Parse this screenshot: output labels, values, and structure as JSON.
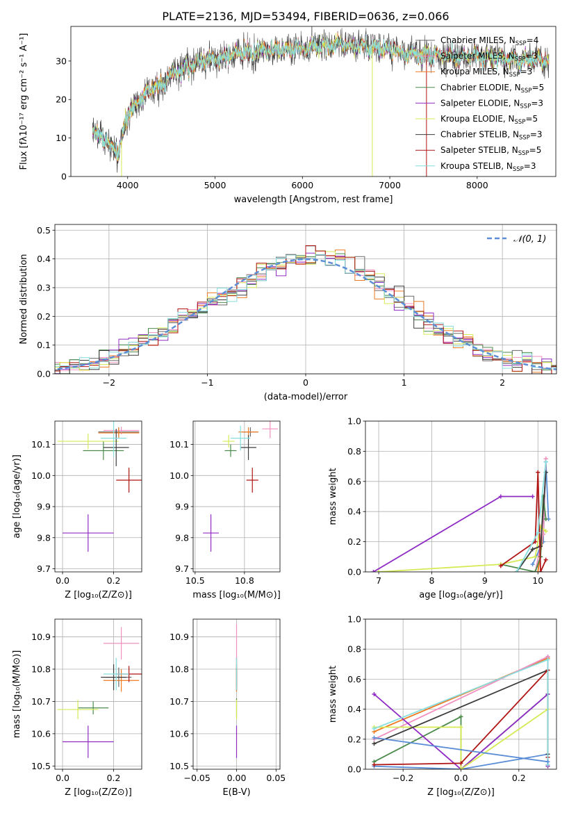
{
  "figure": {
    "title": "PLATE=2136, MJD=53494, FIBERID=0636, z=0.066"
  },
  "series_colors": [
    "#6a6a6a",
    "#f08fc0",
    "#ee7a22",
    "#4c8a4c",
    "#8f2bc4",
    "#d6ea55",
    "#3c3c3c",
    "#b01414",
    "#86dede"
  ],
  "legend_colors": {
    "normal": "#5b8ed6"
  },
  "chart_data": [
    {
      "id": "spectrum",
      "type": "line",
      "xlabel": "wavelength [Angstrom, rest frame]",
      "ylabel": "Flux [fλ10⁻¹⁷ erg cm⁻² s⁻¹ A⁻¹]",
      "xlim": [
        3350,
        8900
      ],
      "ylim": [
        0,
        39
      ],
      "xticks": [
        4000,
        5000,
        6000,
        7000,
        8000
      ],
      "yticks": [
        0,
        10,
        20,
        30
      ],
      "x_range_data": [
        3600,
        8820
      ],
      "continuum_shape": {
        "x": [
          3600,
          3700,
          3800,
          3900,
          3950,
          4000,
          4100,
          4200,
          4300,
          4400,
          4500,
          4600,
          4800,
          5000,
          5200,
          5500,
          5800,
          6000,
          6200,
          6500,
          6800,
          7000,
          7200,
          7500,
          7800,
          8000,
          8400,
          8820
        ],
        "y": [
          11,
          10.5,
          8,
          6,
          12,
          16,
          19,
          22,
          23,
          24,
          26,
          27.5,
          29.5,
          30.5,
          31.5,
          32.5,
          33,
          33.5,
          34,
          34.5,
          33.5,
          33,
          32,
          31.5,
          31,
          31,
          30.5,
          30
        ]
      },
      "legend_position": "right",
      "legend": [
        {
          "label": "Chabrier MILES, N",
          "sub": "SSP",
          "suffix": "=4"
        },
        {
          "label": "Salpeter MILES, N",
          "sub": "SSP",
          "suffix": "=3"
        },
        {
          "label": "Kroupa MILES, N",
          "sub": "SSP",
          "suffix": "=3"
        },
        {
          "label": "Chabrier ELODIE, N",
          "sub": "SSP",
          "suffix": "=5"
        },
        {
          "label": "Salpeter ELODIE, N",
          "sub": "SSP",
          "suffix": "=3"
        },
        {
          "label": "Kroupa ELODIE, N",
          "sub": "SSP",
          "suffix": "=5"
        },
        {
          "label": "Chabrier STELIB, N",
          "sub": "SSP",
          "suffix": "=3"
        },
        {
          "label": "Salpeter STELIB, N",
          "sub": "SSP",
          "suffix": "=5"
        },
        {
          "label": "Kroupa STELIB, N",
          "sub": "SSP",
          "suffix": "=3"
        }
      ]
    },
    {
      "id": "residuals",
      "type": "histogram",
      "xlabel": "(data-model)/error",
      "ylabel": "Normed distribution",
      "xlim": [
        -2.55,
        2.55
      ],
      "ylim": [
        0,
        0.52
      ],
      "xticks": [
        -2,
        -1,
        0,
        1,
        2
      ],
      "yticks": [
        0.0,
        0.1,
        0.2,
        0.3,
        0.4,
        0.5
      ],
      "bin_width": 0.1,
      "grid": true,
      "legend_position": "top-right",
      "legend": [
        {
          "label": "𝒩(0, 1)"
        }
      ]
    },
    {
      "id": "age-vs-z",
      "type": "errorbar",
      "xlabel": "Z [log₁₀(Z/Z⊙)]",
      "ylabel": "age  [log₁₀(age/yr)]",
      "xlim": [
        -0.03,
        0.31
      ],
      "ylim": [
        9.69,
        10.175
      ],
      "xticks": [
        0.0,
        0.2
      ],
      "yticks": [
        9.7,
        9.8,
        9.9,
        10.0,
        10.1
      ],
      "grid": true,
      "points": [
        {
          "x": 0.22,
          "xerr": 0.08,
          "y": 10.14,
          "yerr": 0.015
        },
        {
          "x": 0.23,
          "xerr": 0.07,
          "y": 10.145,
          "yerr": 0.012
        },
        {
          "x": 0.22,
          "xerr": 0.08,
          "y": 10.137,
          "yerr": 0.018
        },
        {
          "x": 0.16,
          "xerr": 0.08,
          "y": 10.08,
          "yerr": 0.03
        },
        {
          "x": 0.1,
          "xerr": 0.1,
          "y": 9.815,
          "yerr": 0.06
        },
        {
          "x": 0.1,
          "xerr": 0.12,
          "y": 10.11,
          "yerr": 0.025
        },
        {
          "x": 0.21,
          "xerr": 0.05,
          "y": 10.09,
          "yerr": 0.06
        },
        {
          "x": 0.26,
          "xerr": 0.05,
          "y": 9.985,
          "yerr": 0.04
        },
        {
          "x": 0.2,
          "xerr": 0.05,
          "y": 10.12,
          "yerr": 0.06
        }
      ]
    },
    {
      "id": "age-vs-mass",
      "type": "errorbar",
      "xlabel": "mass [log₁₀(M/M⊙)]",
      "ylabel": "",
      "xlim": [
        10.49,
        10.93
      ],
      "ylim": [
        9.69,
        10.175
      ],
      "xticks": [
        10.5,
        10.75
      ],
      "yticks": [
        9.7,
        9.8,
        9.9,
        10.0,
        10.1
      ],
      "grid": true,
      "points": [
        {
          "x": 10.78,
          "xerr": 0.04,
          "y": 10.14,
          "yerr": 0.015
        },
        {
          "x": 10.88,
          "xerr": 0.04,
          "y": 10.15,
          "yerr": 0.03
        },
        {
          "x": 10.77,
          "xerr": 0.05,
          "y": 10.14,
          "yerr": 0.015
        },
        {
          "x": 10.68,
          "xerr": 0.03,
          "y": 10.08,
          "yerr": 0.02
        },
        {
          "x": 10.58,
          "xerr": 0.04,
          "y": 9.815,
          "yerr": 0.06
        },
        {
          "x": 10.67,
          "xerr": 0.03,
          "y": 10.11,
          "yerr": 0.02
        },
        {
          "x": 10.77,
          "xerr": 0.04,
          "y": 10.09,
          "yerr": 0.04
        },
        {
          "x": 10.79,
          "xerr": 0.03,
          "y": 9.985,
          "yerr": 0.04
        },
        {
          "x": 10.73,
          "xerr": 0.05,
          "y": 10.12,
          "yerr": 0.04
        }
      ]
    },
    {
      "id": "weight-vs-age",
      "type": "line",
      "xlabel": "age  [log₁₀(age/yr)]",
      "ylabel": "mass weight",
      "xlim": [
        6.75,
        10.35
      ],
      "ylim": [
        0,
        1.0
      ],
      "xticks": [
        7,
        8,
        9,
        10
      ],
      "yticks": [
        0.0,
        0.2,
        0.4,
        0.6,
        0.8,
        1.0
      ],
      "grid": true,
      "series": [
        {
          "x": [
            9.9,
            10.1,
            10.15,
            10.2
          ],
          "y": [
            0.05,
            0.2,
            0.73,
            0.35
          ]
        },
        {
          "x": [
            10.0,
            10.1,
            10.15
          ],
          "y": [
            0.0,
            0.25,
            0.75
          ]
        },
        {
          "x": [
            9.95,
            10.1,
            10.15
          ],
          "y": [
            0.0,
            0.25,
            0.75
          ]
        },
        {
          "x": [
            9.3,
            9.95,
            10.05,
            10.1,
            10.15
          ],
          "y": [
            0.05,
            0.0,
            0.1,
            0.5,
            0.35
          ]
        },
        {
          "x": [
            6.9,
            9.3,
            9.9
          ],
          "y": [
            0.0,
            0.5,
            0.5
          ]
        },
        {
          "x": [
            7.0,
            9.3,
            9.95,
            10.05,
            10.15
          ],
          "y": [
            0.0,
            0.05,
            0.1,
            0.3,
            0.27
          ]
        },
        {
          "x": [
            9.6,
            9.9,
            10.05,
            10.15
          ],
          "y": [
            0.0,
            0.15,
            0.17,
            0.66
          ]
        },
        {
          "x": [
            9.3,
            9.95,
            10.0,
            10.05,
            10.15
          ],
          "y": [
            0.04,
            0.2,
            0.66,
            0.0,
            0.08
          ]
        },
        {
          "x": [
            9.6,
            10.0,
            10.15
          ],
          "y": [
            0.0,
            0.26,
            0.73
          ]
        }
      ]
    },
    {
      "id": "mass-vs-z",
      "type": "errorbar",
      "xlabel": "Z [log₁₀(Z/Z⊙)]",
      "ylabel": "mass [log₁₀(M/M⊙)]",
      "xlim": [
        -0.03,
        0.31
      ],
      "ylim": [
        10.49,
        10.955
      ],
      "xticks": [
        0.0,
        0.2
      ],
      "yticks": [
        10.5,
        10.6,
        10.7,
        10.8,
        10.9
      ],
      "grid": true,
      "points": [
        {
          "x": 0.22,
          "xerr": 0.05,
          "y": 10.775,
          "yerr": 0.03
        },
        {
          "x": 0.23,
          "xerr": 0.07,
          "y": 10.88,
          "yerr": 0.05
        },
        {
          "x": 0.23,
          "xerr": 0.07,
          "y": 10.765,
          "yerr": 0.035
        },
        {
          "x": 0.12,
          "xerr": 0.06,
          "y": 10.68,
          "yerr": 0.02
        },
        {
          "x": 0.1,
          "xerr": 0.1,
          "y": 10.575,
          "yerr": 0.05
        },
        {
          "x": 0.06,
          "xerr": 0.08,
          "y": 10.675,
          "yerr": 0.03
        },
        {
          "x": 0.2,
          "xerr": 0.05,
          "y": 10.775,
          "yerr": 0.04
        },
        {
          "x": 0.26,
          "xerr": 0.05,
          "y": 10.785,
          "yerr": 0.025
        },
        {
          "x": 0.21,
          "xerr": 0.05,
          "y": 10.785,
          "yerr": 0.05
        }
      ]
    },
    {
      "id": "mass-vs-ebv",
      "type": "errorbar",
      "xlabel": "E(B-V)",
      "ylabel": "",
      "xlim": [
        -0.055,
        0.055
      ],
      "ylim": [
        10.49,
        10.955
      ],
      "xticks": [
        -0.05,
        0.0,
        0.05
      ],
      "yticks": [
        10.5,
        10.6,
        10.7,
        10.8,
        10.9
      ],
      "grid": true,
      "points": [
        {
          "x": 0.0,
          "xerr": 0.0,
          "y": 10.775,
          "yerr": 0.03
        },
        {
          "x": 0.0,
          "xerr": 0.0,
          "y": 10.88,
          "yerr": 0.06
        },
        {
          "x": 0.0,
          "xerr": 0.0,
          "y": 10.765,
          "yerr": 0.035
        },
        {
          "x": 0.0,
          "xerr": 0.0,
          "y": 10.68,
          "yerr": 0.03
        },
        {
          "x": 0.0,
          "xerr": 0.0,
          "y": 10.575,
          "yerr": 0.05
        },
        {
          "x": 0.0,
          "xerr": 0.0,
          "y": 10.675,
          "yerr": 0.03
        },
        {
          "x": 0.0,
          "xerr": 0.0,
          "y": 10.775,
          "yerr": 0.04
        },
        {
          "x": 0.0,
          "xerr": 0.0,
          "y": 10.785,
          "yerr": 0.05
        },
        {
          "x": 0.0,
          "xerr": 0.0,
          "y": 10.785,
          "yerr": 0.05
        }
      ]
    },
    {
      "id": "weight-vs-z",
      "type": "line",
      "xlabel": "Z [log₁₀(Z/Z⊙)]",
      "ylabel": "mass weight",
      "xlim": [
        -0.33,
        0.33
      ],
      "ylim": [
        0,
        1.0
      ],
      "xticks": [
        -0.2,
        0.0,
        0.2
      ],
      "yticks": [
        0.0,
        0.2,
        0.4,
        0.6,
        0.8,
        1.0
      ],
      "grid": true,
      "series": [
        {
          "x": [
            -0.3,
            0.0,
            0.3,
            0.3
          ],
          "y": [
            0.02,
            0.0,
            0.1,
            0.75
          ]
        },
        {
          "x": [
            -0.3,
            0.3,
            0.3
          ],
          "y": [
            0.25,
            0.74,
            0.02
          ]
        },
        {
          "x": [
            -0.3,
            0.3,
            0.3
          ],
          "y": [
            0.2,
            0.75,
            0.03
          ]
        },
        {
          "x": [
            -0.3,
            0.0,
            0.0,
            0.3
          ],
          "y": [
            0.05,
            0.35,
            0.0,
            0.5
          ]
        },
        {
          "x": [
            -0.3,
            0.0,
            0.3,
            0.3
          ],
          "y": [
            0.5,
            0.0,
            0.5,
            0.02
          ]
        },
        {
          "x": [
            -0.3,
            0.0,
            0.0,
            0.3
          ],
          "y": [
            0.28,
            0.28,
            0.0,
            0.4
          ]
        },
        {
          "x": [
            -0.3,
            0.3,
            0.3
          ],
          "y": [
            0.17,
            0.66,
            0.1
          ]
        },
        {
          "x": [
            -0.3,
            0.0,
            0.3,
            0.3
          ],
          "y": [
            0.03,
            0.04,
            0.66,
            0.08
          ]
        },
        {
          "x": [
            -0.3,
            0.3,
            0.3
          ],
          "y": [
            0.27,
            0.73,
            0.03
          ]
        },
        {
          "x": [
            -0.3,
            0.3
          ],
          "y": [
            0.21,
            0.05
          ]
        }
      ]
    }
  ]
}
